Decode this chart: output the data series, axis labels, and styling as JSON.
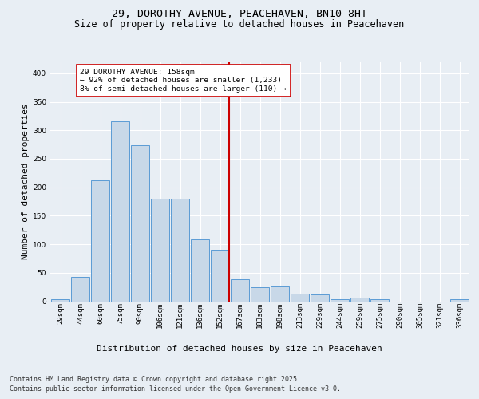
{
  "title_line1": "29, DOROTHY AVENUE, PEACEHAVEN, BN10 8HT",
  "title_line2": "Size of property relative to detached houses in Peacehaven",
  "xlabel": "Distribution of detached houses by size in Peacehaven",
  "ylabel": "Number of detached properties",
  "categories": [
    "29sqm",
    "44sqm",
    "60sqm",
    "75sqm",
    "90sqm",
    "106sqm",
    "121sqm",
    "136sqm",
    "152sqm",
    "167sqm",
    "183sqm",
    "198sqm",
    "213sqm",
    "229sqm",
    "244sqm",
    "259sqm",
    "275sqm",
    "290sqm",
    "305sqm",
    "321sqm",
    "336sqm"
  ],
  "values": [
    4,
    43,
    212,
    316,
    274,
    180,
    180,
    109,
    91,
    39,
    25,
    26,
    14,
    12,
    3,
    6,
    3,
    0,
    0,
    0,
    3
  ],
  "bar_color": "#c8d8e8",
  "bar_edge_color": "#5b9bd5",
  "vline_idx": 8,
  "vline_color": "#cc0000",
  "annotation_text": "29 DOROTHY AVENUE: 158sqm\n← 92% of detached houses are smaller (1,233)\n8% of semi-detached houses are larger (110) →",
  "annotation_box_color": "#ffffff",
  "annotation_box_edge": "#cc0000",
  "ylim": [
    0,
    420
  ],
  "yticks": [
    0,
    50,
    100,
    150,
    200,
    250,
    300,
    350,
    400
  ],
  "background_color": "#e8eef4",
  "plot_bg_color": "#e8eef4",
  "grid_color": "#ffffff",
  "footer_line1": "Contains HM Land Registry data © Crown copyright and database right 2025.",
  "footer_line2": "Contains public sector information licensed under the Open Government Licence v3.0.",
  "title_fontsize": 9.5,
  "subtitle_fontsize": 8.5,
  "label_fontsize": 8,
  "tick_fontsize": 6.5,
  "annotation_fontsize": 6.8,
  "footer_fontsize": 6
}
